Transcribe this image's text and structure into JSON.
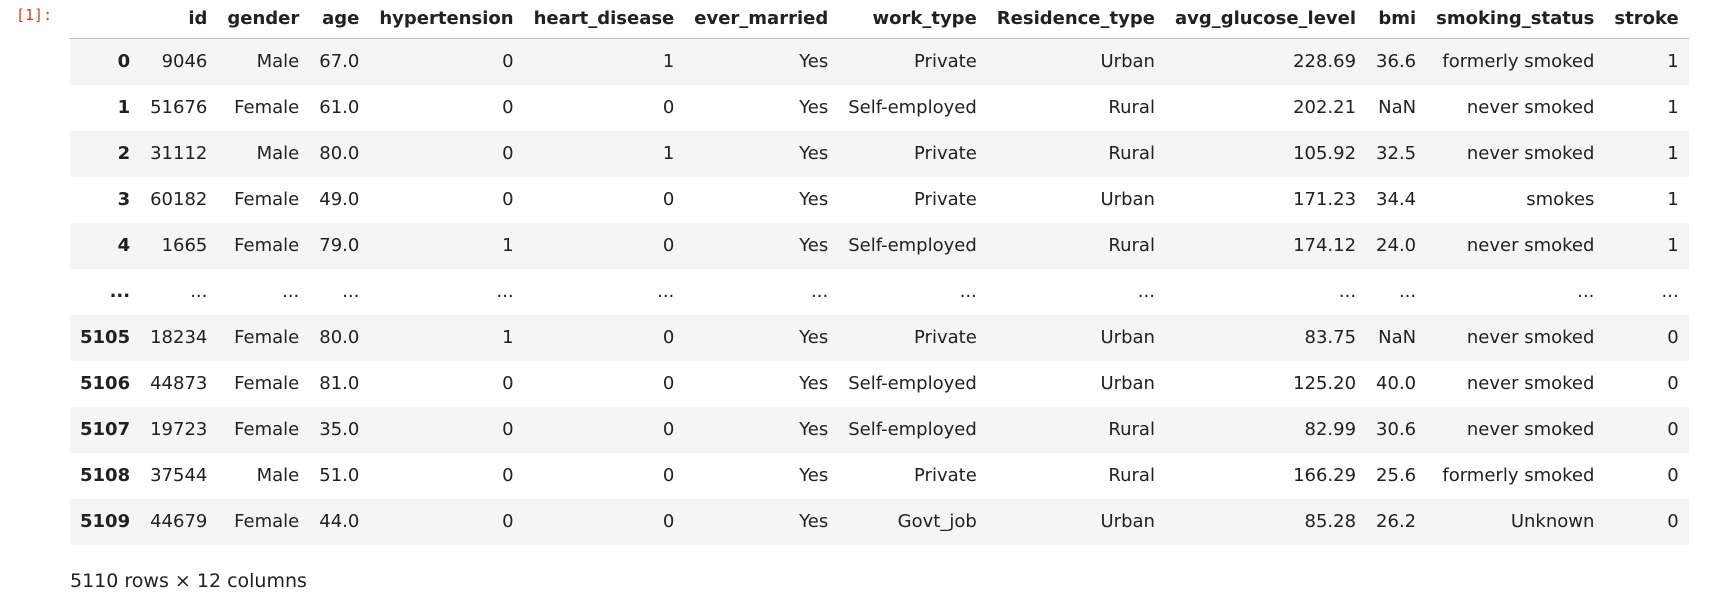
{
  "cell": {
    "prompt": "[1]:"
  },
  "table": {
    "columns": [
      "",
      "id",
      "gender",
      "age",
      "hypertension",
      "heart_disease",
      "ever_married",
      "work_type",
      "Residence_type",
      "avg_glucose_level",
      "bmi",
      "smoking_status",
      "stroke"
    ],
    "rows": [
      [
        "0",
        "9046",
        "Male",
        "67.0",
        "0",
        "1",
        "Yes",
        "Private",
        "Urban",
        "228.69",
        "36.6",
        "formerly smoked",
        "1"
      ],
      [
        "1",
        "51676",
        "Female",
        "61.0",
        "0",
        "0",
        "Yes",
        "Self-employed",
        "Rural",
        "202.21",
        "NaN",
        "never smoked",
        "1"
      ],
      [
        "2",
        "31112",
        "Male",
        "80.0",
        "0",
        "1",
        "Yes",
        "Private",
        "Rural",
        "105.92",
        "32.5",
        "never smoked",
        "1"
      ],
      [
        "3",
        "60182",
        "Female",
        "49.0",
        "0",
        "0",
        "Yes",
        "Private",
        "Urban",
        "171.23",
        "34.4",
        "smokes",
        "1"
      ],
      [
        "4",
        "1665",
        "Female",
        "79.0",
        "1",
        "0",
        "Yes",
        "Self-employed",
        "Rural",
        "174.12",
        "24.0",
        "never smoked",
        "1"
      ],
      [
        "...",
        "...",
        "...",
        "...",
        "...",
        "...",
        "...",
        "...",
        "...",
        "...",
        "...",
        "...",
        "..."
      ],
      [
        "5105",
        "18234",
        "Female",
        "80.0",
        "1",
        "0",
        "Yes",
        "Private",
        "Urban",
        "83.75",
        "NaN",
        "never smoked",
        "0"
      ],
      [
        "5106",
        "44873",
        "Female",
        "81.0",
        "0",
        "0",
        "Yes",
        "Self-employed",
        "Urban",
        "125.20",
        "40.0",
        "never smoked",
        "0"
      ],
      [
        "5107",
        "19723",
        "Female",
        "35.0",
        "0",
        "0",
        "Yes",
        "Self-employed",
        "Rural",
        "82.99",
        "30.6",
        "never smoked",
        "0"
      ],
      [
        "5108",
        "37544",
        "Male",
        "51.0",
        "0",
        "0",
        "Yes",
        "Private",
        "Rural",
        "166.29",
        "25.6",
        "formerly smoked",
        "0"
      ],
      [
        "5109",
        "44679",
        "Female",
        "44.0",
        "0",
        "0",
        "Yes",
        "Govt_job",
        "Urban",
        "85.28",
        "26.2",
        "Unknown",
        "0"
      ]
    ]
  },
  "summary": "5110 rows × 12 columns"
}
